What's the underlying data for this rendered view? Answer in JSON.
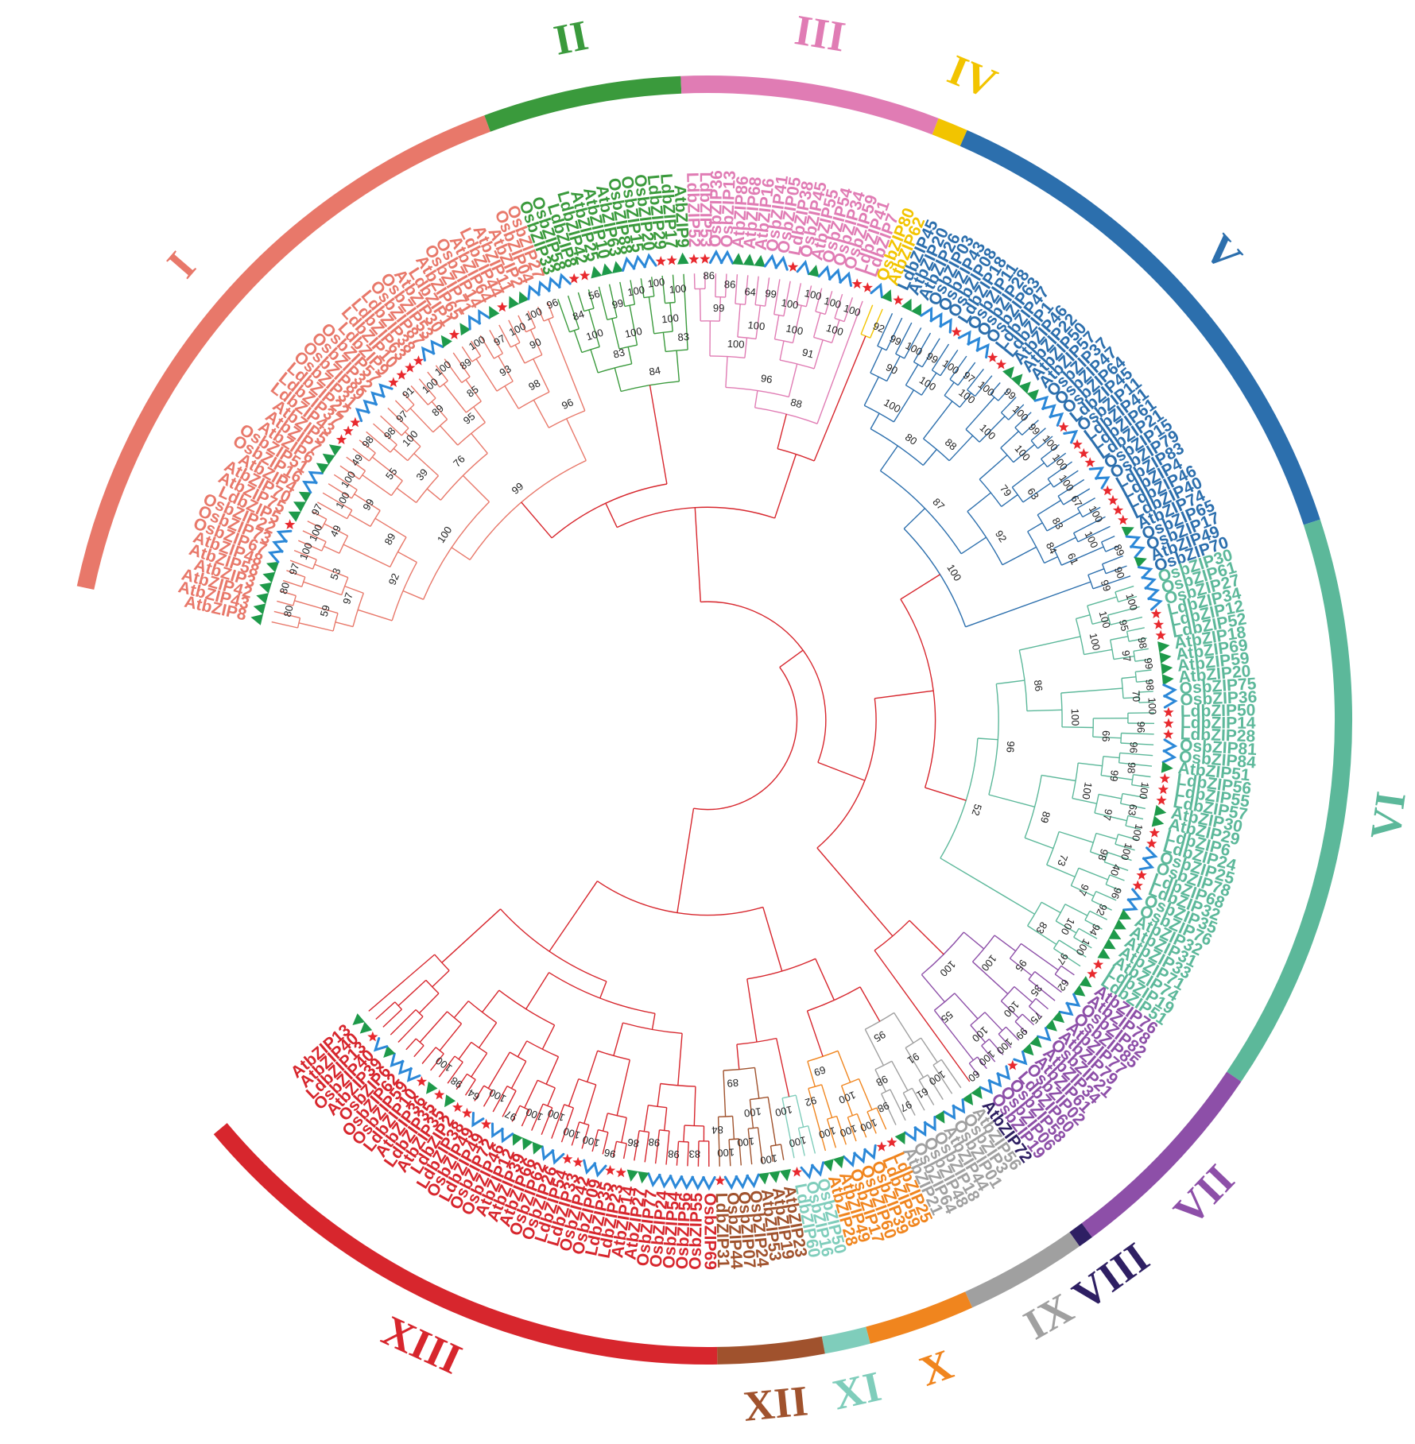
{
  "clades": [
    {
      "id": "I",
      "color": "#e8786a",
      "leaves": [
        "AtbZIP8",
        "AtbZIP43",
        "AtbZIP42",
        "AtbZIP3",
        "AtbZIP58",
        "AtbZIP48",
        "OsbZIP67",
        "OsbZIP73",
        "OsbZIP22",
        "LdbZIP5",
        "AtbZIP75",
        "AtbZIP70",
        "AtbZIP4",
        "OsbZIP16",
        "OsbZIP51",
        "AtbZIP6",
        "AtbZIP7",
        "AtbZIP5",
        "LdbZIP43",
        "LdbZIP37",
        "LdbZIP22",
        "OsbZIP31",
        "OsbZIP89",
        "OsbZIP32",
        "OsbZIP57",
        "LdbZIP9",
        "LdbZIP10",
        "LdbZIP63",
        "LdbZIP38",
        "OsbZIP87",
        "OsbZIP53",
        "AtbZIP30",
        "LdbZIP1",
        "AtbZIP65",
        "OsbZIP71",
        "OsbZIP14",
        "AtbZIP64",
        "LdbZIP44",
        "AtbZIP11",
        "AtbZIP2",
        "OsbZIP04",
        "OsbZIP27"
      ]
    },
    {
      "id": "II",
      "color": "#3a9a3c",
      "leaves": [
        "OsbZIP33",
        "OsbZIP58",
        "LdbZIP8",
        "LdbZIP42",
        "AtbZIP25",
        "AtbZIP10",
        "AtbZIP63",
        "OsbZIP88",
        "OsbZIP15",
        "OsbZIP20",
        "LdbZIP29",
        "LdbZIP17",
        "AtbZIP9"
      ]
    },
    {
      "id": "III",
      "color": "#e07cb4",
      "leaves": [
        "LdbZIP52",
        "LdbZIP53",
        "OsbZIP36",
        "OsbZIP13",
        "AtbZIP86",
        "AtbZIP68",
        "AtbZIP16",
        "OsbZIP41",
        "OsbZIP05",
        "LdbZIP38",
        "OsbZIP45",
        "AtbZIP55",
        "OsbZIP54",
        "OsbZIP34",
        "OsbZIP59",
        "LdbZIP41",
        "LdbZIP7"
      ]
    },
    {
      "id": "IV",
      "color": "#f2c400",
      "leaves": [
        "OsbZIP80",
        "AtbZIP62"
      ]
    },
    {
      "id": "V",
      "color": "#2c6fad",
      "leaves": [
        "LdbZIP45",
        "AtbZIP20",
        "AtbZIP26",
        "OsbZIP03",
        "OsbZIP43",
        "OsbZIP08",
        "LdbZIP18",
        "OsbZIP11",
        "OsbZIP28",
        "OsbZIP63",
        "LdbZIP47",
        "LdbZIP1",
        "AtbZIP46",
        "AtbZIP22",
        "AtbZIP50",
        "AtbZIP57",
        "OsbZIP37",
        "OsbZIP47",
        "OsbZIP64",
        "LdbZIP45",
        "OsbZIP11",
        "LdbZIP41",
        "LdbZIP61",
        "LdbZIP21",
        "OsbZIP15",
        "OsbZIP79",
        "LdbZIP83",
        "LdbZIP4",
        "LdbZIP46",
        "LdbZIP40",
        "AtbZIP74",
        "OsbZIP65",
        "OsbZIP17",
        "AtbZIP49",
        "OsbZIP70"
      ]
    },
    {
      "id": "VI",
      "color": "#5cb89a",
      "leaves": [
        "OsbZIP30",
        "OsbZIP61",
        "OsbZIP27",
        "LdbZIP34",
        "LdbZIP12",
        "LdbZIP52",
        "AtbZIP18",
        "AtbZIP69",
        "AtbZIP59",
        "AtbZIP20",
        "OsbZIP75",
        "OsbZIP36",
        "LdbZIP50",
        "LdbZIP14",
        "LdbZIP28",
        "OsbZIP81",
        "OsbZIP84",
        "AtbZIP51",
        "LdbZIP56",
        "LdbZIP55",
        "LdbZIP57",
        "AtbZIP30",
        "AtbZIP29",
        "LdbZIP6",
        "LdbZIP24",
        "OsbZIP25",
        "OsbZIP78",
        "LdbZIP68",
        "LdbZIP32",
        "OsbZIP35",
        "OsbZIP76",
        "AtbZIP32",
        "AtbZIP31",
        "AtbZIP33",
        "AtbZIP71",
        "AtbZIP74",
        "LdbZIP19",
        "LdbZIP51"
      ]
    },
    {
      "id": "VII",
      "color": "#8d4fa8",
      "leaves": [
        "AtbZIP76",
        "AtbZIP78",
        "OsbZIP82",
        "OsbZIP85",
        "AtbZIP77",
        "AtbZIP79",
        "OsbZIP21",
        "AtbZIP34",
        "AtbZIP61",
        "OsbZIP02",
        "LdbZIP60",
        "OsbZIP58",
        "OsbZIP06",
        "OsbZIP19"
      ]
    },
    {
      "id": "VIII",
      "color": "#2e1f63",
      "leaves": [
        "AtbZIP72"
      ]
    },
    {
      "id": "IX",
      "color": "#a0a0a0",
      "leaves": [
        "AtbZIP56",
        "OsbZIP3",
        "OsbZIP01",
        "AtbZIP44",
        "OsbZIP18",
        "OsbZIP48",
        "OsbZIP64",
        "AtbZIP21"
      ]
    },
    {
      "id": "X",
      "color": "#f0851e",
      "leaves": [
        "LdbZIP25",
        "LdbZIP59",
        "OsbZIP39",
        "OsbZIP60",
        "OsbZIP17",
        "AtbZIP49",
        "AtbZIP28"
      ]
    },
    {
      "id": "XI",
      "color": "#7fcdbb",
      "leaves": [
        "OsbZIP50",
        "OsbZIP16",
        "LdbZIP60"
      ]
    },
    {
      "id": "XII",
      "color": "#a0522d",
      "leaves": [
        "AtbZIP23",
        "AtbZIP19",
        "AtbZIP53",
        "OsbZIP24",
        "OsbZIP07",
        "OsbZIP44",
        "LdbZIP31"
      ]
    },
    {
      "id": "XIII",
      "color": "#d7262d",
      "leaves": [
        "OsbZIP69",
        "OsbZIP55",
        "OsbZIP56",
        "OsbZIP54",
        "OsbZIP24",
        "OsbZIP77",
        "AtbZIP27",
        "AtbZIP14",
        "LdbZIP23",
        "LdbZIP35",
        "OsbZIP09",
        "OsbZIP42",
        "LdbZIP33",
        "LdbZIP54",
        "OsbZIP26",
        "OsbZIP62",
        "AtbZIP66",
        "AtbZIP39",
        "AtbZIP12",
        "OsbZIP46",
        "OsbZIP72",
        "LdbZIP49",
        "OsbZIP49",
        "LdbZIP38",
        "LdbZIP2",
        "AtbZIP35",
        "LdbZIP35",
        "AtbZIP36",
        "LdbZIP10",
        "OsbZIP59",
        "OsbZIP62",
        "OsbZIP6",
        "AtbZIP39",
        "OsbZIP40",
        "LdbZIP13",
        "AtbZIP40",
        "AtbZIP13"
      ]
    }
  ],
  "bootstrap": [
    "80",
    "80",
    "97",
    "100",
    "100",
    "97",
    "100",
    "100",
    "49",
    "98",
    "98",
    "97",
    "91",
    "100",
    "100",
    "89",
    "100",
    "97",
    "100",
    "100",
    "96",
    "59",
    "53",
    "49",
    "99",
    "55",
    "100",
    "89",
    "85",
    "93",
    "90",
    "97",
    "89",
    "39",
    "95",
    "98",
    "92",
    "76",
    "96",
    "100",
    "99",
    "84",
    "56",
    "99",
    "100",
    "100",
    "100",
    "100",
    "100",
    "100",
    "83",
    "83",
    "84",
    "86",
    "86",
    "64",
    "99",
    "100",
    "100",
    "100",
    "100",
    "99",
    "100",
    "100",
    "100",
    "100",
    "91",
    "96",
    "88",
    "92",
    "99",
    "100",
    "99",
    "100",
    "97",
    "100",
    "99",
    "100",
    "99",
    "100",
    "100",
    "100",
    "67",
    "100",
    "100",
    "89",
    "90",
    "90",
    "100",
    "100",
    "100",
    "100",
    "63",
    "83",
    "61",
    "99",
    "100",
    "88",
    "79",
    "84",
    "80",
    "92",
    "87",
    "100",
    "100",
    "95",
    "98",
    "99",
    "98",
    "100",
    "96",
    "96",
    "98",
    "100",
    "63",
    "100",
    "100",
    "40",
    "96",
    "92",
    "94",
    "100",
    "97",
    "100",
    "97",
    "70",
    "66",
    "99",
    "97",
    "98",
    "97",
    "100",
    "100",
    "100",
    "100",
    "73",
    "83",
    "86",
    "89",
    "96",
    "52",
    "62",
    "35",
    "75",
    "99",
    "100",
    "100",
    "60",
    "95",
    "100",
    "100",
    "100",
    "55",
    "100",
    "100",
    "61",
    "97",
    "98",
    "91",
    "98",
    "95",
    "100",
    "100",
    "100",
    "100",
    "92",
    "69",
    "100",
    "100",
    "100",
    "100",
    "100",
    "100",
    "84",
    "89",
    "83",
    "98",
    "98",
    "86",
    "96",
    "100",
    "100",
    "100",
    "100",
    "97",
    "100",
    "64",
    "98",
    "100"
  ],
  "legend_markers": [
    "star",
    "triangle",
    "chevron"
  ],
  "marker_colors": {
    "Ld": "#e8292e",
    "At": "#1e9a4a",
    "Os": "#2b88d8"
  }
}
